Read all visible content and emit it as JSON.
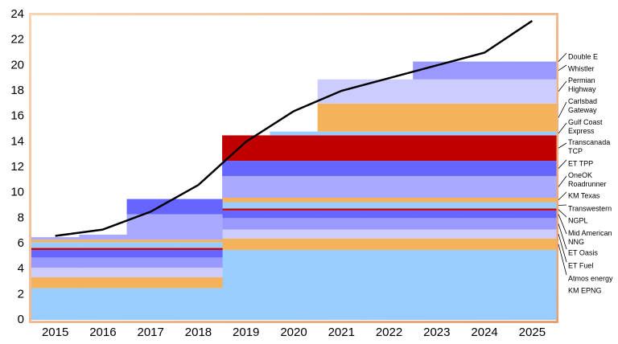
{
  "chart_data": {
    "type": "stacked-step-area",
    "categories": [
      "2015",
      "2016",
      "2017",
      "2018",
      "2019",
      "2020",
      "2021",
      "2022",
      "2023",
      "2024",
      "2025"
    ],
    "ylim": [
      0,
      24
    ],
    "yticks": [
      0,
      2,
      4,
      6,
      8,
      10,
      12,
      14,
      16,
      18,
      20,
      22,
      24
    ],
    "series": [
      {
        "name": "KM EPNG",
        "color": "#99ccff",
        "values": [
          2.5,
          2.5,
          2.5,
          2.5,
          5.5,
          5.5,
          5.5,
          5.5,
          5.5,
          5.5,
          5.5
        ]
      },
      {
        "name": "Atmos energy",
        "color": "#f4b35a",
        "values": [
          0.85,
          0.85,
          0.85,
          0.85,
          0.9,
          0.9,
          0.9,
          0.9,
          0.9,
          0.9,
          0.9
        ]
      },
      {
        "name": "ET Fuel",
        "color": "#ccccff",
        "values": [
          0.75,
          0.75,
          0.75,
          0.75,
          0.7,
          0.7,
          0.7,
          0.7,
          0.7,
          0.7,
          0.7
        ]
      },
      {
        "name": "ET Oasis",
        "color": "#9999ff",
        "values": [
          0.8,
          0.8,
          0.8,
          0.8,
          0.9,
          0.9,
          0.9,
          0.9,
          0.9,
          0.9,
          0.9
        ]
      },
      {
        "name": "Mid American NNG",
        "color": "#6666ff",
        "values": [
          0.6,
          0.6,
          0.6,
          0.6,
          0.6,
          0.6,
          0.6,
          0.6,
          0.6,
          0.6,
          0.6
        ]
      },
      {
        "name": "NGPL",
        "color": "#c00000",
        "values": [
          0.15,
          0.15,
          0.15,
          0.15,
          0.15,
          0.15,
          0.15,
          0.15,
          0.15,
          0.15,
          0.15
        ]
      },
      {
        "name": "Transwestern",
        "color": "#99ccff",
        "values": [
          0.45,
          0.45,
          0.45,
          0.45,
          0.5,
          0.5,
          0.5,
          0.5,
          0.5,
          0.5,
          0.5
        ]
      },
      {
        "name": "KM Texas",
        "color": "#f4b35a",
        "values": [
          0.2,
          0.2,
          0.2,
          0.2,
          0.35,
          0.35,
          0.35,
          0.35,
          0.35,
          0.35,
          0.35
        ]
      },
      {
        "name": "OneOK Roadrunner",
        "color": "#a9a9ff",
        "values": [
          0.2,
          0.4,
          2.0,
          2.0,
          1.7,
          1.7,
          1.7,
          1.7,
          1.7,
          1.7,
          1.7
        ]
      },
      {
        "name": "ET TPP",
        "color": "#6666ff",
        "values": [
          0,
          0,
          1.2,
          1.2,
          1.2,
          1.2,
          1.2,
          1.2,
          1.2,
          1.2,
          1.2
        ]
      },
      {
        "name": "Transcanada TCP",
        "color": "#c00000",
        "values": [
          0,
          0,
          0,
          0,
          2.0,
          2.0,
          2.0,
          2.0,
          2.0,
          2.0,
          2.0
        ]
      },
      {
        "name": "Gulf Coast Express",
        "color": "#99ccff",
        "values": [
          0,
          0,
          0,
          0,
          0,
          0.3,
          0.3,
          0.3,
          0.3,
          0.3,
          0.3
        ]
      },
      {
        "name": "Carlsbad Gateway",
        "color": "#f4b35a",
        "values": [
          0,
          0,
          0,
          0,
          0,
          0,
          2.2,
          2.2,
          2.2,
          2.2,
          2.2
        ]
      },
      {
        "name": "Permian Highway",
        "color": "#ccccff",
        "values": [
          0,
          0,
          0,
          0,
          0,
          0,
          1.9,
          1.9,
          1.9,
          1.9,
          1.9
        ]
      },
      {
        "name": "Whistler",
        "color": "#9999ff",
        "values": [
          0,
          0,
          0,
          0,
          0,
          0,
          0,
          0,
          1.4,
          1.4,
          1.4
        ]
      },
      {
        "name": "Double E",
        "color": "#6666ff",
        "values": [
          0,
          0,
          0,
          0,
          0,
          0,
          0,
          0,
          0,
          0,
          0
        ]
      }
    ],
    "line": {
      "color": "#000000",
      "values": [
        6.6,
        7.1,
        8.5,
        10.6,
        14.0,
        16.4,
        18.0,
        19.0,
        20.0,
        21.0,
        23.5
      ]
    }
  }
}
